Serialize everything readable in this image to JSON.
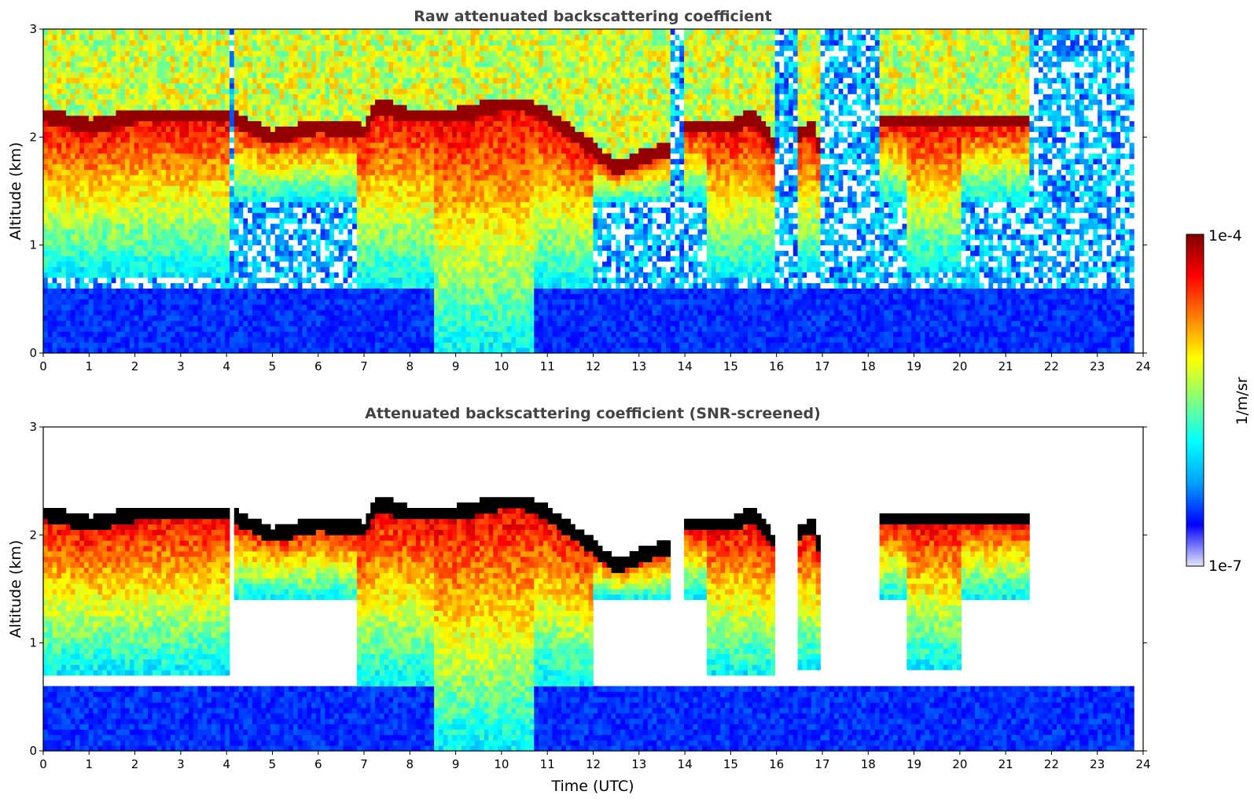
{
  "chart_data": [
    {
      "type": "heatmap",
      "title": "Raw attenuated backscattering coefficient",
      "xlabel": "",
      "ylabel": "Altitude (km)",
      "xlim": [
        0,
        24
      ],
      "ylim": [
        0,
        3
      ],
      "x_ticks": [
        "0",
        "1",
        "2",
        "3",
        "4",
        "5",
        "6",
        "7",
        "8",
        "9",
        "10",
        "11",
        "12",
        "13",
        "14",
        "15",
        "16",
        "17",
        "18",
        "19",
        "20",
        "21",
        "22",
        "23",
        "24"
      ],
      "y_ticks": [
        "0",
        "1",
        "2",
        "3"
      ],
      "data_end_time": 23.8,
      "grid": false,
      "cloud_layers": [
        {
          "t_start": 0.0,
          "t_end": 4.0,
          "top_km": 2.2,
          "note_value": "1e-4"
        },
        {
          "t_start": 4.0,
          "t_end": 7.3,
          "top_km": 2.05,
          "note_value": "1e-4"
        },
        {
          "t_start": 7.3,
          "t_end": 9.0,
          "top_km": 2.2,
          "note_value": "1e-4"
        },
        {
          "t_start": 10.4,
          "t_end": 12.0,
          "top_km": 2.2,
          "note_value": "1e-4"
        },
        {
          "t_start": 12.0,
          "t_end": 13.7,
          "top_km": 1.8,
          "note_value": "1e-4"
        },
        {
          "t_start": 14.0,
          "t_end": 15.7,
          "top_km": 2.05,
          "note_value": "1e-4"
        },
        {
          "t_start": 18.2,
          "t_end": 21.5,
          "top_km": 2.15,
          "note_value": "1e-4"
        }
      ],
      "screened": false
    },
    {
      "type": "heatmap",
      "title": "Attenuated backscattering coefficient (SNR-screened)",
      "xlabel": "Time (UTC)",
      "ylabel": "Altitude (km)",
      "xlim": [
        0,
        24
      ],
      "ylim": [
        0,
        3
      ],
      "x_ticks": [
        "0",
        "1",
        "2",
        "3",
        "4",
        "5",
        "6",
        "7",
        "8",
        "9",
        "10",
        "11",
        "12",
        "13",
        "14",
        "15",
        "16",
        "17",
        "18",
        "19",
        "20",
        "21",
        "22",
        "23",
        "24"
      ],
      "y_ticks": [
        "0",
        "1",
        "2",
        "3"
      ],
      "data_end_time": 23.8,
      "grid": false,
      "screened": true
    }
  ],
  "colorbar": {
    "label": "1/m/sr",
    "max_label": "1e-4",
    "min_label": "1e-7",
    "colormap": "jet",
    "colors": [
      "#e6e6f8",
      "#0000ff",
      "#00a0ff",
      "#00ffff",
      "#80ff80",
      "#ffff00",
      "#ff8000",
      "#ff0000",
      "#800000"
    ]
  }
}
